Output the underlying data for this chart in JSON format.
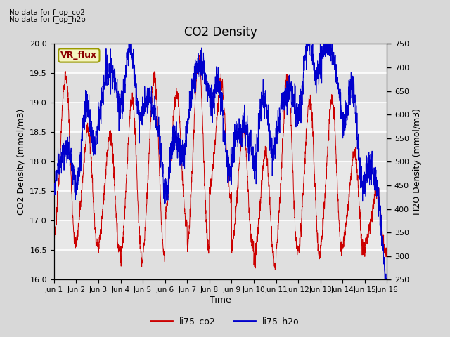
{
  "title": "CO2 Density",
  "xlabel": "Time",
  "ylabel_left": "CO2 Density (mmol/m3)",
  "ylabel_right": "H2O Density (mmol/m3)",
  "top_note1": "No data for f_op_co2",
  "top_note2": "No data for f_op_h2o",
  "vr_flux_label": "VR_flux",
  "ylim_left": [
    16.0,
    20.0
  ],
  "ylim_right": [
    250,
    750
  ],
  "xtick_labels": [
    "Jun 1",
    "Jun 2",
    "Jun 3",
    "Jun 4",
    "Jun 5",
    "Jun 6",
    "Jun 7",
    "Jun 8",
    "Jun 9",
    "Jun 10",
    "Jun 11",
    "Jun 12",
    "Jun 13",
    "Jun 14",
    "Jun 15",
    "Jun 16"
  ],
  "legend_labels": [
    "li75_co2",
    "li75_h2o"
  ],
  "co2_color": "#cc0000",
  "h2o_color": "#0000cc",
  "fig_facecolor": "#d8d8d8",
  "plot_facecolor": "#e8e8e8",
  "n_days": 15,
  "points_per_day": 144
}
